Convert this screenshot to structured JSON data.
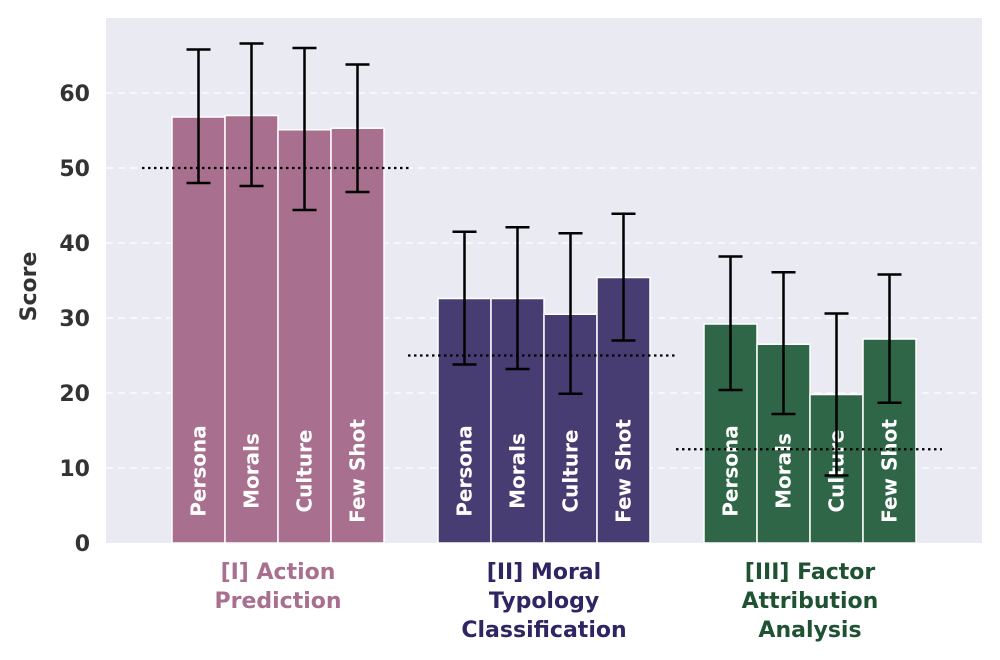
{
  "chart_data": {
    "type": "bar",
    "ylabel": "Score",
    "ylim": [
      0,
      70
    ],
    "yticks": [
      0,
      10,
      20,
      30,
      40,
      50,
      60
    ],
    "grid": true,
    "legend": "none",
    "groups": [
      {
        "label_lines": [
          "[I] Action",
          "Prediction"
        ],
        "color": "#a86f8f",
        "label_color": "#a86f8f",
        "baseline": 50,
        "bars": [
          {
            "name": "Persona",
            "value": 56.8,
            "err_low": 48.0,
            "err_high": 65.8
          },
          {
            "name": "Morals",
            "value": 57.0,
            "err_low": 47.6,
            "err_high": 66.6
          },
          {
            "name": "Culture",
            "value": 55.1,
            "err_low": 44.4,
            "err_high": 66.0
          },
          {
            "name": "Few Shot",
            "value": 55.3,
            "err_low": 46.8,
            "err_high": 63.8
          }
        ]
      },
      {
        "label_lines": [
          "[II] Moral",
          "Typology",
          "Classification"
        ],
        "color": "#473d73",
        "label_color": "#2f2563",
        "baseline": 25,
        "bars": [
          {
            "name": "Persona",
            "value": 32.6,
            "err_low": 23.8,
            "err_high": 41.5
          },
          {
            "name": "Morals",
            "value": 32.6,
            "err_low": 23.2,
            "err_high": 42.1
          },
          {
            "name": "Culture",
            "value": 30.5,
            "err_low": 19.9,
            "err_high": 41.3
          },
          {
            "name": "Few Shot",
            "value": 35.4,
            "err_low": 27.0,
            "err_high": 43.9
          }
        ]
      },
      {
        "label_lines": [
          "[III] Factor",
          "Attribution",
          "Analysis"
        ],
        "color": "#2e6647",
        "label_color": "#1f5233",
        "baseline": 12.5,
        "bars": [
          {
            "name": "Persona",
            "value": 29.2,
            "err_low": 20.4,
            "err_high": 38.2
          },
          {
            "name": "Morals",
            "value": 26.5,
            "err_low": 17.2,
            "err_high": 36.1
          },
          {
            "name": "Culture",
            "value": 19.8,
            "err_low": 9.0,
            "err_high": 30.6
          },
          {
            "name": "Few Shot",
            "value": 27.2,
            "err_low": 18.7,
            "err_high": 35.8
          }
        ]
      }
    ]
  }
}
